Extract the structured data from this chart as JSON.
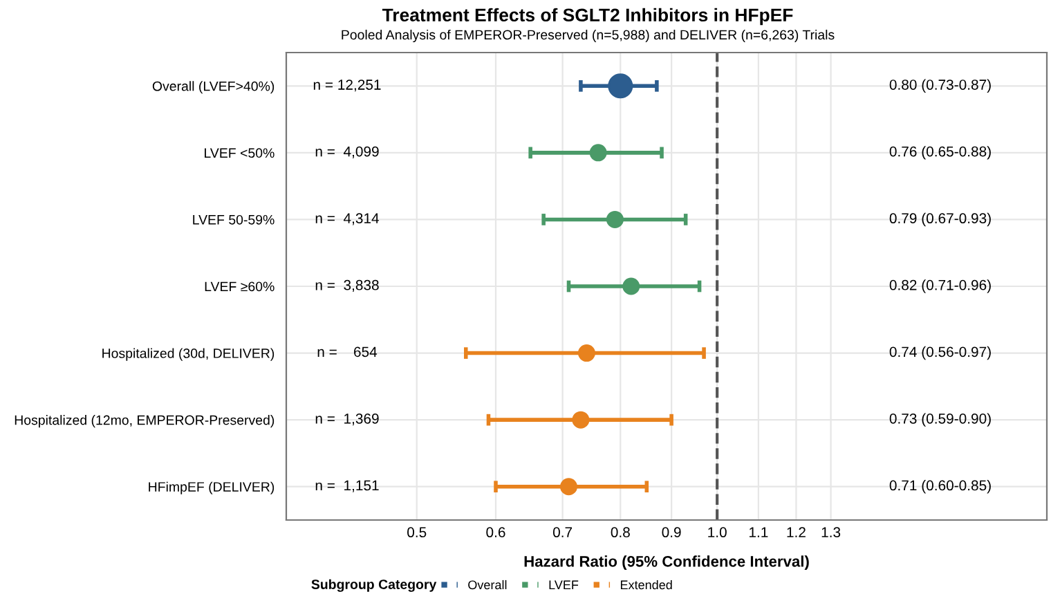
{
  "chart_data": {
    "type": "scatter",
    "orientation": "horizontal",
    "title": "Treatment Effects of SGLT2 Inhibitors in HFpEF",
    "subtitle": "Pooled Analysis of EMPEROR-Preserved (n=5,988) and DELIVER (n=6,263) Trials",
    "xlabel": "Hazard Ratio (95% Confidence Interval)",
    "legend_title": "Subgroup Category",
    "categories": [
      "Overall (LVEF>40%)",
      "LVEF <50%",
      "LVEF 50-59%",
      "LVEF ≥60%",
      "Hospitalized (30d, DELIVER)",
      "Hospitalized (12mo, EMPEROR-Preserved)",
      "HFimpEF (DELIVER)"
    ],
    "series": [
      {
        "name": "Overall",
        "color": "#2c5d8f",
        "values": [
          0.8,
          null,
          null,
          null,
          null,
          null,
          null
        ],
        "errors": [
          [
            0.73,
            0.87
          ],
          null,
          null,
          null,
          null,
          null,
          null
        ]
      },
      {
        "name": "LVEF",
        "color": "#4a9a68",
        "values": [
          null,
          0.76,
          0.79,
          0.82,
          null,
          null,
          null
        ],
        "errors": [
          null,
          [
            0.65,
            0.88
          ],
          [
            0.67,
            0.93
          ],
          [
            0.71,
            0.96
          ],
          null,
          null,
          null
        ]
      },
      {
        "name": "Extended",
        "color": "#e8821e",
        "values": [
          null,
          null,
          null,
          null,
          0.74,
          0.73,
          0.71
        ],
        "errors": [
          null,
          null,
          null,
          null,
          [
            0.56,
            0.97
          ],
          [
            0.59,
            0.9
          ],
          [
            0.6,
            0.85
          ]
        ]
      }
    ],
    "annotations": [
      "n = 12,251",
      "n =  4,099",
      "n =  4,314",
      "n =  3,838",
      "n =    654",
      "n =  1,369",
      "n =  1,151",
      "0.80 (0.73-0.87)",
      "0.76 (0.65-0.88)",
      "0.79 (0.67-0.93)",
      "0.82 (0.71-0.96)",
      "0.74 (0.56-0.97)",
      "0.73 (0.59-0.90)",
      "0.71 (0.60-0.85)"
    ],
    "log": "x",
    "xlim": [
      0.37,
      2.14
    ],
    "xticks": [
      0.5,
      0.6,
      0.7,
      0.8,
      0.9,
      {
        "value": 1.0,
        "label": "1.0"
      },
      1.1,
      1.2,
      1.3
    ],
    "ref_lines": [
      {
        "axis": "x",
        "value": 1.0,
        "color": "#555555",
        "line_style": "dashed"
      }
    ],
    "grid": true,
    "legend": "bottom",
    "marker": "circle"
  }
}
